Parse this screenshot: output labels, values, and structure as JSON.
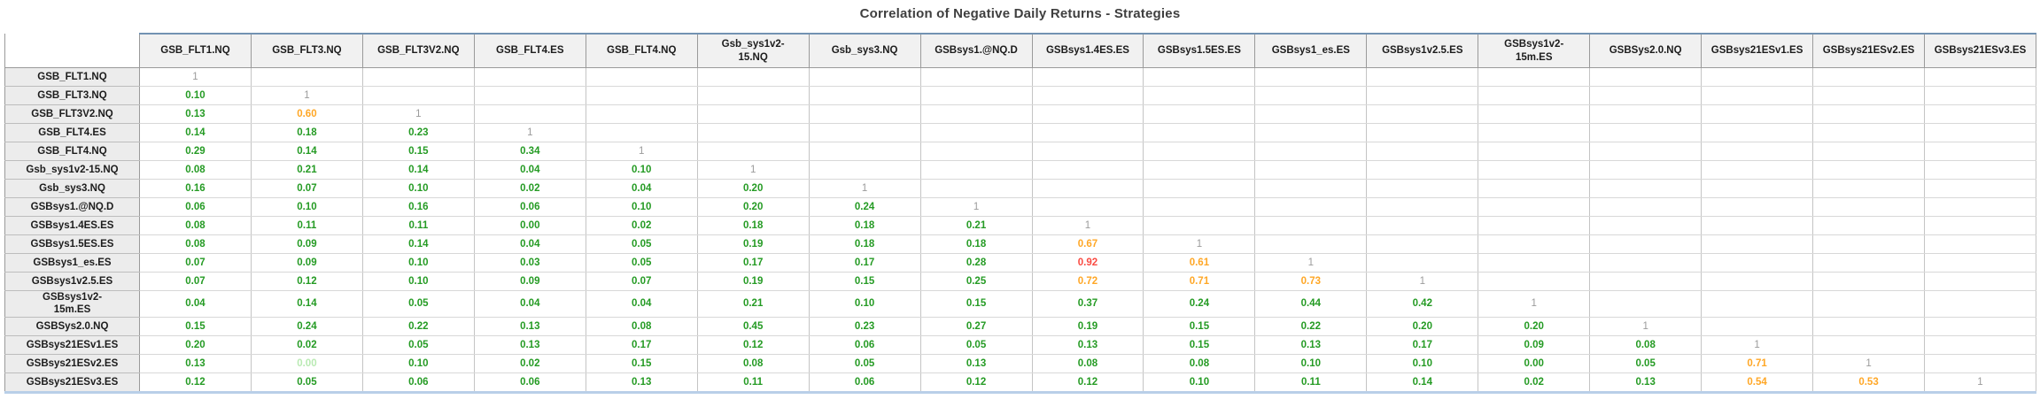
{
  "title": "Correlation of Negative Daily Returns - Strategies",
  "colors": {
    "value_green": "#259b24",
    "value_pale_green": "#b9eab3",
    "value_orange": "#ffa726",
    "value_red": "#fa4b42",
    "diagonal_gray": "#9b9b9b",
    "header_bg": "#f1f1f1",
    "row_header_bg": "#ececec",
    "header_top_border": "#7292b2",
    "table_bottom_border": "#b9cfe8",
    "grid_line": "#c4c4c4"
  },
  "table": {
    "columns_display": [
      "GSB_FLT1.NQ",
      "GSB_FLT3.NQ",
      "GSB_FLT3V2.NQ",
      "GSB_FLT4.ES",
      "GSB_FLT4.NQ",
      "Gsb_sys1v2-\n15.NQ",
      "Gsb_sys3.NQ",
      "GSBsys1.@NQ.D",
      "GSBsys1.4ES.ES",
      "GSBsys1.5ES.ES",
      "GSBsys1_es.ES",
      "GSBsys1v2.5.ES",
      "GSBsys1v2-\n15m.ES",
      "GSBSys2.0.NQ",
      "GSBsys21ESv1.ES",
      "GSBsys21ESv2.ES",
      "GSBsys21ESv3.ES"
    ],
    "rows_display": [
      "GSB_FLT1.NQ",
      "GSB_FLT3.NQ",
      "GSB_FLT3V2.NQ",
      "GSB_FLT4.ES",
      "GSB_FLT4.NQ",
      "Gsb_sys1v2-15.NQ",
      "Gsb_sys3.NQ",
      "GSBsys1.@NQ.D",
      "GSBsys1.4ES.ES",
      "GSBsys1.5ES.ES",
      "GSBsys1_es.ES",
      "GSBsys1v2.5.ES",
      "GSBsys1v2-\n15m.ES",
      "GSBSys2.0.NQ",
      "GSBsys21ESv1.ES",
      "GSBsys21ESv2.ES",
      "GSBsys21ESv3.ES"
    ],
    "pale_cells": [
      [
        15,
        1
      ]
    ]
  },
  "chart_data": {
    "type": "heatmap",
    "title": "Correlation of Negative Daily Returns - Strategies",
    "legend_position": "none",
    "grid": true,
    "categories": [
      "GSB_FLT1.NQ",
      "GSB_FLT3.NQ",
      "GSB_FLT3V2.NQ",
      "GSB_FLT4.ES",
      "GSB_FLT4.NQ",
      "Gsb_sys1v2-15.NQ",
      "Gsb_sys3.NQ",
      "GSBsys1.@NQ.D",
      "GSBsys1.4ES.ES",
      "GSBsys1.5ES.ES",
      "GSBsys1_es.ES",
      "GSBsys1v2.5.ES",
      "GSBsys1v2-15m.ES",
      "GSBSys2.0.NQ",
      "GSBsys21ESv1.ES",
      "GSBsys21ESv2.ES",
      "GSBsys21ESv3.ES"
    ],
    "matrix_lower_triangle": [
      [
        1
      ],
      [
        0.1,
        1
      ],
      [
        0.13,
        0.6,
        1
      ],
      [
        0.14,
        0.18,
        0.23,
        1
      ],
      [
        0.29,
        0.14,
        0.15,
        0.34,
        1
      ],
      [
        0.08,
        0.21,
        0.14,
        0.04,
        0.1,
        1
      ],
      [
        0.16,
        0.07,
        0.1,
        0.02,
        0.04,
        0.2,
        1
      ],
      [
        0.06,
        0.1,
        0.16,
        0.06,
        0.1,
        0.2,
        0.24,
        1
      ],
      [
        0.08,
        0.11,
        0.11,
        0.0,
        0.02,
        0.18,
        0.18,
        0.21,
        1
      ],
      [
        0.08,
        0.09,
        0.14,
        0.04,
        0.05,
        0.19,
        0.18,
        0.18,
        0.67,
        1
      ],
      [
        0.07,
        0.09,
        0.1,
        0.03,
        0.05,
        0.17,
        0.17,
        0.28,
        0.92,
        0.61,
        1
      ],
      [
        0.07,
        0.12,
        0.1,
        0.09,
        0.07,
        0.19,
        0.15,
        0.25,
        0.72,
        0.71,
        0.73,
        1
      ],
      [
        0.04,
        0.14,
        0.05,
        0.04,
        0.04,
        0.21,
        0.1,
        0.15,
        0.37,
        0.24,
        0.44,
        0.42,
        1
      ],
      [
        0.15,
        0.24,
        0.22,
        0.13,
        0.08,
        0.45,
        0.23,
        0.27,
        0.19,
        0.15,
        0.22,
        0.2,
        0.2,
        1
      ],
      [
        0.2,
        0.02,
        0.05,
        0.13,
        0.17,
        0.12,
        0.06,
        0.05,
        0.13,
        0.15,
        0.13,
        0.17,
        0.09,
        0.08,
        1
      ],
      [
        0.13,
        0.0,
        0.1,
        0.02,
        0.15,
        0.08,
        0.05,
        0.13,
        0.08,
        0.08,
        0.1,
        0.1,
        0.0,
        0.05,
        0.71,
        1
      ],
      [
        0.12,
        0.05,
        0.06,
        0.06,
        0.13,
        0.11,
        0.06,
        0.12,
        0.12,
        0.1,
        0.11,
        0.14,
        0.02,
        0.13,
        0.54,
        0.53,
        1
      ]
    ],
    "color_rule": {
      "red_min": 0.9,
      "orange_min": 0.5,
      "else": "green",
      "diagonal": "gray"
    }
  }
}
